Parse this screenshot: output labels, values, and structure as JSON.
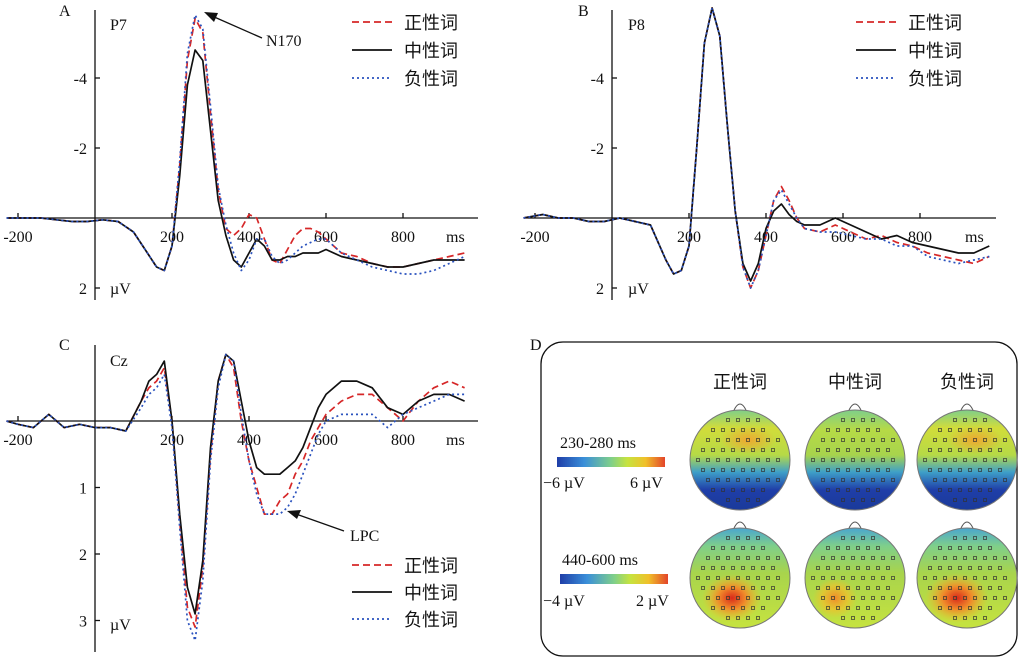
{
  "chart_data": [
    {
      "panel": "A",
      "electrode": "P7",
      "type": "line",
      "x_ticks": [
        "-200",
        "200",
        "400",
        "600",
        "800",
        "ms"
      ],
      "y_ticks": [
        "-4",
        "-2",
        "2"
      ],
      "y_unit": "µV",
      "xlim": [
        -250,
        970
      ],
      "ylim": [
        -6,
        2.3
      ],
      "y_inverted": true,
      "legend": [
        "正性词",
        "中性词",
        "负性词"
      ],
      "annotation": "N170",
      "series": [
        {
          "name": "正性词",
          "color": "#d62728",
          "dash": "7,4",
          "x": [
            -230,
            -180,
            -140,
            -100,
            -60,
            -20,
            20,
            60,
            100,
            130,
            160,
            180,
            200,
            220,
            240,
            260,
            280,
            300,
            320,
            340,
            360,
            380,
            400,
            420,
            440,
            460,
            480,
            500,
            520,
            540,
            560,
            580,
            600,
            640,
            680,
            720,
            760,
            800,
            840,
            880,
            920,
            960
          ],
          "y": [
            0,
            0,
            0,
            0.05,
            0.1,
            0.1,
            0.05,
            0.1,
            0.4,
            0.9,
            1.4,
            1.5,
            0.8,
            -1.5,
            -4.5,
            -5.7,
            -5.3,
            -3,
            -0.8,
            0.3,
            0.5,
            0.3,
            -0.1,
            0,
            0.6,
            1.2,
            1.3,
            0.9,
            0.5,
            0.3,
            0.3,
            0.4,
            0.6,
            1,
            1.1,
            1.3,
            1.4,
            1.4,
            1.3,
            1.2,
            1.1,
            1
          ]
        },
        {
          "name": "中性词",
          "color": "#111111",
          "dash": "",
          "x": [
            -230,
            -180,
            -140,
            -100,
            -60,
            -20,
            20,
            60,
            100,
            130,
            160,
            180,
            200,
            220,
            240,
            260,
            280,
            300,
            320,
            340,
            360,
            380,
            400,
            420,
            440,
            460,
            480,
            500,
            520,
            540,
            560,
            580,
            600,
            640,
            680,
            720,
            760,
            800,
            840,
            880,
            920,
            960
          ],
          "y": [
            0,
            0,
            0,
            0.05,
            0.1,
            0.1,
            0.05,
            0.1,
            0.4,
            0.9,
            1.4,
            1.5,
            0.8,
            -1.2,
            -3.8,
            -4.8,
            -4.5,
            -2.5,
            -0.5,
            0.5,
            1.2,
            1.4,
            1,
            0.6,
            0.8,
            1.2,
            1.2,
            1.1,
            1.1,
            1,
            1,
            1,
            0.9,
            1.1,
            1.2,
            1.3,
            1.4,
            1.4,
            1.3,
            1.2,
            1.2,
            1.2
          ]
        },
        {
          "name": "负性词",
          "color": "#2a52be",
          "dash": "2,3",
          "x": [
            -230,
            -180,
            -140,
            -100,
            -60,
            -20,
            20,
            60,
            100,
            130,
            160,
            180,
            200,
            220,
            240,
            260,
            280,
            300,
            320,
            340,
            360,
            380,
            400,
            420,
            440,
            460,
            480,
            500,
            520,
            540,
            560,
            580,
            600,
            640,
            680,
            720,
            760,
            800,
            840,
            880,
            920,
            960
          ],
          "y": [
            0,
            0,
            0,
            0.05,
            0.1,
            0.1,
            0.05,
            0.1,
            0.4,
            0.9,
            1.4,
            1.5,
            0.8,
            -1.6,
            -4.7,
            -5.8,
            -5.4,
            -3.2,
            -0.9,
            0.2,
            1,
            1.5,
            1.2,
            0.6,
            0.6,
            1.1,
            1.3,
            1.2,
            1,
            0.8,
            0.7,
            0.6,
            0.6,
            1,
            1.2,
            1.4,
            1.5,
            1.6,
            1.6,
            1.5,
            1.3,
            1.1
          ]
        }
      ]
    },
    {
      "panel": "B",
      "electrode": "P8",
      "type": "line",
      "x_ticks": [
        "-200",
        "200",
        "400",
        "600",
        "800",
        "ms"
      ],
      "y_ticks": [
        "-4",
        "-2",
        "2"
      ],
      "y_unit": "µV",
      "xlim": [
        -250,
        970
      ],
      "ylim": [
        -6,
        2.3
      ],
      "y_inverted": true,
      "legend": [
        "正性词",
        "中性词",
        "负性词"
      ],
      "series": [
        {
          "name": "正性词",
          "color": "#d62728",
          "dash": "7,4",
          "x": [
            -230,
            -180,
            -140,
            -100,
            -60,
            -20,
            20,
            60,
            100,
            140,
            160,
            180,
            200,
            220,
            240,
            260,
            280,
            300,
            320,
            340,
            360,
            380,
            400,
            420,
            440,
            460,
            480,
            500,
            540,
            580,
            620,
            660,
            700,
            740,
            780,
            820,
            860,
            900,
            940,
            980
          ],
          "y": [
            0,
            -0.1,
            0,
            0,
            0.1,
            0.1,
            0,
            0.1,
            0.2,
            1.2,
            1.6,
            1.5,
            0.8,
            -2,
            -5,
            -6,
            -5.2,
            -2.6,
            -0.2,
            1.4,
            2,
            1.5,
            0.5,
            -0.5,
            -0.9,
            -0.5,
            0,
            0.3,
            0.4,
            0.2,
            0.4,
            0.6,
            0.5,
            0.7,
            0.8,
            1,
            1.1,
            1.2,
            1.3,
            1.1
          ]
        },
        {
          "name": "中性词",
          "color": "#111111",
          "dash": "",
          "x": [
            -230,
            -180,
            -140,
            -100,
            -60,
            -20,
            20,
            60,
            100,
            140,
            160,
            180,
            200,
            220,
            240,
            260,
            280,
            300,
            320,
            340,
            360,
            380,
            400,
            420,
            440,
            460,
            480,
            500,
            540,
            580,
            620,
            660,
            700,
            740,
            780,
            820,
            860,
            900,
            940,
            980
          ],
          "y": [
            0,
            -0.1,
            0,
            0,
            0.1,
            0.1,
            0,
            0.1,
            0.2,
            1.2,
            1.6,
            1.5,
            0.8,
            -2,
            -5,
            -6,
            -5.2,
            -2.6,
            -0.2,
            1.3,
            1.8,
            1.3,
            0.3,
            -0.2,
            -0.4,
            -0.1,
            0.1,
            0.2,
            0.2,
            0,
            0.2,
            0.4,
            0.6,
            0.5,
            0.7,
            0.8,
            0.9,
            1,
            1,
            0.8
          ]
        },
        {
          "name": "负性词",
          "color": "#2a52be",
          "dash": "2,3",
          "x": [
            -230,
            -180,
            -140,
            -100,
            -60,
            -20,
            20,
            60,
            100,
            140,
            160,
            180,
            200,
            220,
            240,
            260,
            280,
            300,
            320,
            340,
            360,
            380,
            400,
            420,
            440,
            460,
            480,
            500,
            540,
            580,
            620,
            660,
            700,
            740,
            780,
            820,
            860,
            900,
            940,
            980
          ],
          "y": [
            0,
            -0.1,
            0,
            0,
            0.1,
            0.1,
            0,
            0.1,
            0.2,
            1.2,
            1.6,
            1.5,
            0.8,
            -2,
            -5,
            -6,
            -5.2,
            -2.6,
            -0.2,
            1.4,
            2,
            1.5,
            0.5,
            -0.5,
            -0.8,
            -0.4,
            0,
            0.3,
            0.4,
            0.4,
            0.5,
            0.6,
            0.6,
            0.8,
            0.8,
            1.1,
            1.2,
            1.3,
            1.2,
            1.1
          ]
        }
      ]
    },
    {
      "panel": "C",
      "electrode": "Cz",
      "type": "line",
      "x_ticks": [
        "-200",
        "200",
        "400",
        "600",
        "800",
        "ms"
      ],
      "y_ticks": [
        "1",
        "2",
        "3"
      ],
      "y_unit": "µV",
      "xlim": [
        -250,
        970
      ],
      "ylim": [
        -1.2,
        3.3
      ],
      "y_inverted": true,
      "legend": [
        "正性词",
        "中性词",
        "负性词"
      ],
      "annotation": "LPC",
      "series": [
        {
          "name": "正性词",
          "color": "#d62728",
          "dash": "7,4",
          "x": [
            -230,
            -200,
            -160,
            -120,
            -80,
            -40,
            0,
            40,
            80,
            120,
            140,
            160,
            180,
            200,
            220,
            240,
            260,
            280,
            300,
            320,
            340,
            360,
            380,
            400,
            420,
            440,
            460,
            480,
            500,
            520,
            540,
            560,
            580,
            600,
            640,
            680,
            720,
            760,
            800,
            840,
            880,
            920,
            960
          ],
          "y": [
            0,
            0.05,
            0.1,
            -0.1,
            0.1,
            0.05,
            0.1,
            0.1,
            0.15,
            -0.3,
            -0.5,
            -0.6,
            -0.8,
            0,
            1.5,
            2.8,
            3.1,
            2.2,
            0.5,
            -0.6,
            -1,
            -0.8,
            0,
            0.6,
            1,
            1.4,
            1.4,
            1.2,
            1.1,
            0.8,
            0.6,
            0.3,
            0.1,
            -0.1,
            -0.3,
            -0.4,
            -0.4,
            -0.2,
            0,
            -0.3,
            -0.5,
            -0.6,
            -0.5
          ]
        },
        {
          "name": "中性词",
          "color": "#111111",
          "dash": "",
          "x": [
            -230,
            -200,
            -160,
            -120,
            -80,
            -40,
            0,
            40,
            80,
            120,
            140,
            160,
            180,
            200,
            220,
            240,
            260,
            280,
            300,
            320,
            340,
            360,
            380,
            400,
            420,
            440,
            460,
            480,
            500,
            520,
            540,
            560,
            580,
            600,
            640,
            680,
            720,
            760,
            800,
            840,
            880,
            920,
            960
          ],
          "y": [
            0,
            0.05,
            0.1,
            -0.1,
            0.1,
            0.05,
            0.1,
            0.1,
            0.15,
            -0.3,
            -0.6,
            -0.7,
            -0.9,
            0,
            1.4,
            2.5,
            2.9,
            2.1,
            0.4,
            -0.6,
            -1,
            -0.9,
            -0.3,
            0.3,
            0.7,
            0.8,
            0.8,
            0.8,
            0.7,
            0.6,
            0.4,
            0.1,
            -0.2,
            -0.4,
            -0.6,
            -0.6,
            -0.5,
            -0.2,
            -0.1,
            -0.3,
            -0.4,
            -0.4,
            -0.3
          ]
        },
        {
          "name": "负性词",
          "color": "#2a52be",
          "dash": "2,3",
          "x": [
            -230,
            -200,
            -160,
            -120,
            -80,
            -40,
            0,
            40,
            80,
            120,
            140,
            160,
            180,
            200,
            220,
            240,
            260,
            280,
            300,
            320,
            340,
            360,
            380,
            400,
            420,
            440,
            460,
            480,
            500,
            520,
            540,
            560,
            580,
            600,
            640,
            680,
            720,
            760,
            800,
            840,
            880,
            920,
            960
          ],
          "y": [
            0,
            0.05,
            0.1,
            -0.1,
            0.1,
            0.05,
            0.1,
            0.1,
            0.15,
            -0.2,
            -0.4,
            -0.5,
            -0.7,
            0.1,
            1.6,
            3,
            3.3,
            2.4,
            0.6,
            -0.5,
            -1,
            -0.9,
            -0.1,
            0.6,
            1.1,
            1.4,
            1.4,
            1.4,
            1.3,
            1.1,
            0.8,
            0.5,
            0.2,
            0,
            -0.1,
            -0.1,
            -0.1,
            0.1,
            -0.1,
            -0.2,
            -0.3,
            -0.4,
            -0.4
          ]
        }
      ]
    }
  ],
  "panel_d": {
    "label": "D",
    "conditions": [
      "正性词",
      "中性词",
      "负性词"
    ],
    "windows": [
      {
        "time": "230-280 ms",
        "min_label": "−6 µV",
        "max_label": "6 µV"
      },
      {
        "time": "440-600 ms",
        "min_label": "−4 µV",
        "max_label": "2 µV"
      }
    ],
    "colorscale": [
      "#1f3ea8",
      "#3a8fd9",
      "#7fcf8a",
      "#c6e33f",
      "#f0c02a",
      "#e3452a"
    ]
  }
}
